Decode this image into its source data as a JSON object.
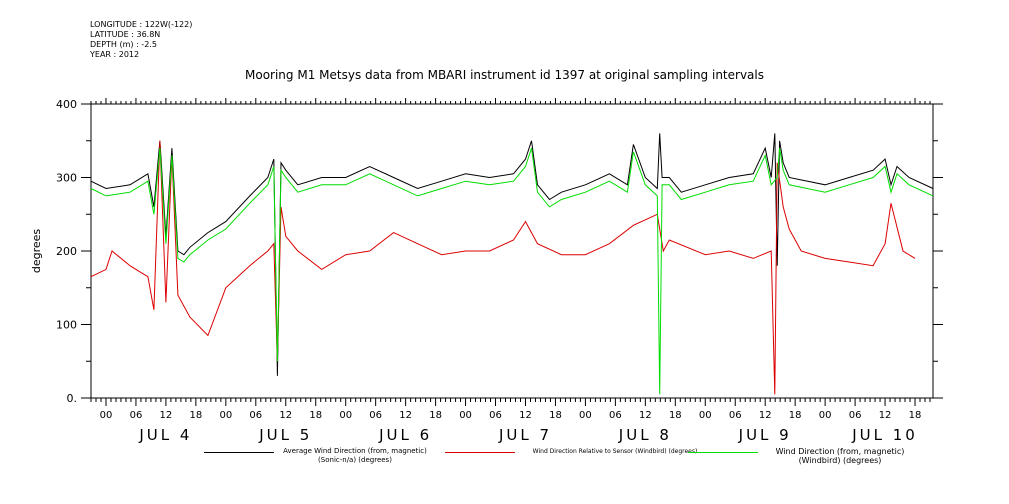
{
  "meta": {
    "longitude": "LONGITUDE : 122W(-122)",
    "latitude": "LATITUDE : 36.8N",
    "depth": "DEPTH (m) : -2.5",
    "year": "YEAR : 2012"
  },
  "chart_data": {
    "type": "line",
    "title": "Mooring M1 Metsys data from MBARI instrument id 1397 at original sampling intervals",
    "ylabel": "degrees",
    "ylim": [
      0,
      400
    ],
    "yticks": [
      "0.",
      "100",
      "200",
      "300",
      "400"
    ],
    "xlim": [
      -0.125,
      6.9
    ],
    "x_unit": "days from JUL 4 00:00 (2012)",
    "hour_tick_labels": [
      "00",
      "06",
      "12",
      "18"
    ],
    "day_labels": [
      "JUL 4",
      "JUL 5",
      "JUL 6",
      "JUL 7",
      "JUL 8",
      "JUL 9",
      "JUL 10"
    ],
    "grid": false,
    "legend_position": "bottom",
    "series": [
      {
        "name": "Average Wind Direction (from, magnetic) (Sonic-n/a) (degrees)",
        "color": "#000000",
        "x": [
          -0.15,
          0.0,
          0.2,
          0.35,
          0.4,
          0.45,
          0.5,
          0.55,
          0.6,
          0.65,
          0.7,
          0.85,
          1.0,
          1.2,
          1.35,
          1.4,
          1.43,
          1.46,
          1.5,
          1.6,
          1.8,
          2.0,
          2.2,
          2.4,
          2.6,
          2.8,
          3.0,
          3.2,
          3.4,
          3.5,
          3.55,
          3.6,
          3.7,
          3.8,
          4.0,
          4.2,
          4.35,
          4.4,
          4.5,
          4.6,
          4.62,
          4.64,
          4.7,
          4.75,
          4.8,
          5.0,
          5.2,
          5.4,
          5.5,
          5.55,
          5.58,
          5.6,
          5.62,
          5.65,
          5.7,
          6.0,
          6.2,
          6.4,
          6.5,
          6.55,
          6.6,
          6.7,
          6.9
        ],
        "y": [
          295,
          285,
          290,
          305,
          260,
          350,
          220,
          340,
          200,
          195,
          205,
          225,
          240,
          275,
          300,
          325,
          30,
          320,
          310,
          290,
          300,
          300,
          315,
          300,
          285,
          295,
          305,
          300,
          305,
          325,
          350,
          290,
          270,
          280,
          290,
          305,
          290,
          345,
          300,
          285,
          360,
          300,
          300,
          290,
          280,
          290,
          300,
          305,
          340,
          300,
          360,
          180,
          350,
          320,
          300,
          290,
          300,
          310,
          325,
          290,
          315,
          300,
          285
        ]
      },
      {
        "name": "Wind Direction Relative to Sensor (Windbird) (degrees)",
        "color": "#dd0000",
        "x": [
          -0.15,
          0.0,
          0.05,
          0.2,
          0.3,
          0.35,
          0.4,
          0.45,
          0.5,
          0.55,
          0.6,
          0.7,
          0.85,
          1.0,
          1.2,
          1.35,
          1.4,
          1.43,
          1.46,
          1.5,
          1.6,
          1.8,
          2.0,
          2.2,
          2.4,
          2.6,
          2.8,
          3.0,
          3.2,
          3.4,
          3.5,
          3.6,
          3.8,
          4.0,
          4.2,
          4.4,
          4.6,
          4.65,
          4.7,
          5.0,
          5.2,
          5.4,
          5.55,
          5.58,
          5.6,
          5.65,
          5.7,
          5.8,
          6.0,
          6.2,
          6.4,
          6.5,
          6.55,
          6.65,
          6.75
        ],
        "y": [
          165,
          175,
          200,
          180,
          170,
          165,
          120,
          350,
          130,
          330,
          140,
          110,
          85,
          150,
          180,
          200,
          210,
          50,
          260,
          220,
          200,
          175,
          195,
          200,
          225,
          210,
          195,
          200,
          200,
          215,
          240,
          210,
          195,
          195,
          210,
          235,
          250,
          200,
          215,
          195,
          200,
          190,
          200,
          5,
          320,
          260,
          230,
          200,
          190,
          185,
          180,
          210,
          265,
          200,
          190
        ]
      },
      {
        "name": "Wind Direction (from, magnetic) (Windbird) (degrees)",
        "color": "#00dd00",
        "x": [
          -0.15,
          0.0,
          0.2,
          0.35,
          0.4,
          0.45,
          0.5,
          0.55,
          0.6,
          0.65,
          0.7,
          0.85,
          1.0,
          1.2,
          1.35,
          1.4,
          1.43,
          1.46,
          1.5,
          1.6,
          1.8,
          2.0,
          2.2,
          2.4,
          2.6,
          2.8,
          3.0,
          3.2,
          3.4,
          3.5,
          3.55,
          3.6,
          3.7,
          3.8,
          4.0,
          4.2,
          4.35,
          4.4,
          4.5,
          4.6,
          4.62,
          4.64,
          4.7,
          4.75,
          4.8,
          5.0,
          5.2,
          5.4,
          5.5,
          5.55,
          5.6,
          5.62,
          5.65,
          5.7,
          6.0,
          6.2,
          6.4,
          6.5,
          6.55,
          6.6,
          6.7,
          6.9
        ],
        "y": [
          285,
          275,
          280,
          295,
          250,
          340,
          210,
          330,
          190,
          185,
          195,
          215,
          230,
          265,
          290,
          315,
          50,
          310,
          300,
          280,
          290,
          290,
          305,
          290,
          275,
          285,
          295,
          290,
          295,
          315,
          340,
          280,
          260,
          270,
          280,
          295,
          280,
          335,
          290,
          275,
          5,
          290,
          290,
          280,
          270,
          280,
          290,
          295,
          330,
          290,
          300,
          340,
          310,
          290,
          280,
          290,
          300,
          315,
          280,
          305,
          290,
          275
        ]
      }
    ]
  }
}
